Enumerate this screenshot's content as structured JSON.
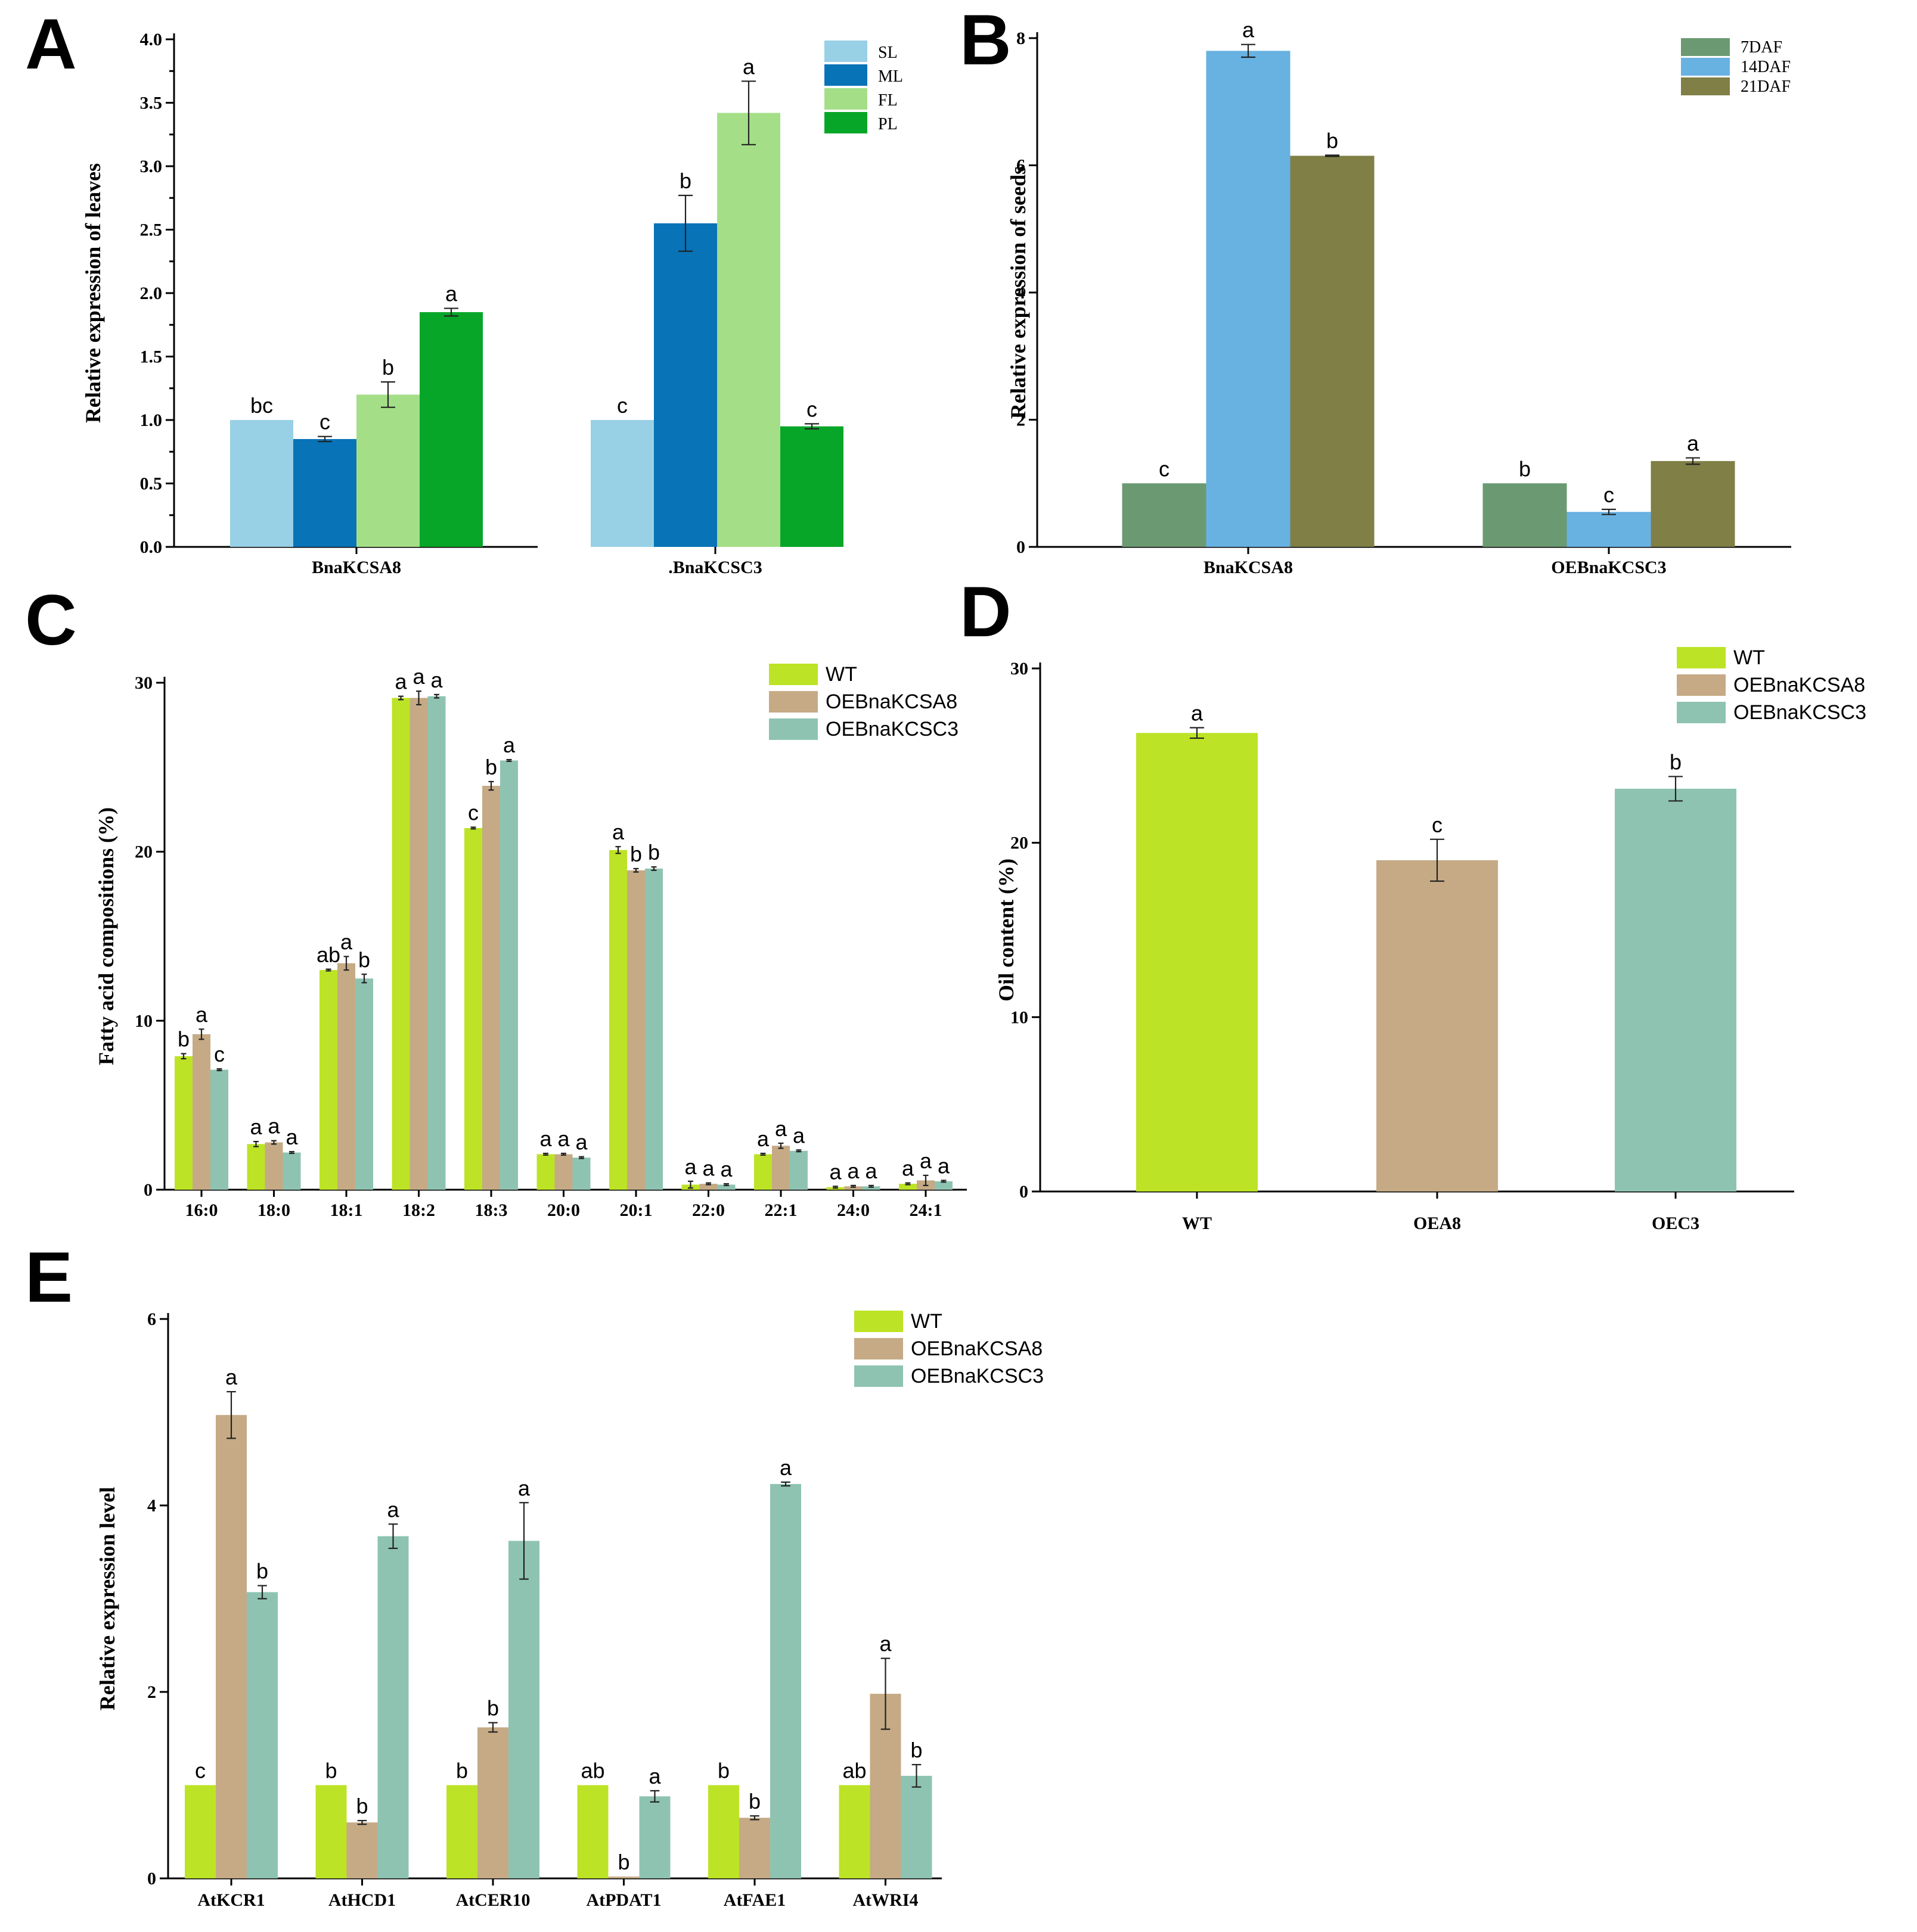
{
  "chart_data": [
    {
      "panel": "A",
      "type": "bar",
      "ylabel": "Relative expression of leaves",
      "categories": [
        "BnaKCSA8",
        "BnaKCSC3"
      ],
      "category_labels": [
        "BnaKCSA8",
        ".BnaKCSC3"
      ],
      "ylim": [
        0,
        4.0
      ],
      "yticks": [
        "0.0",
        "0.5",
        "1.0",
        "1.5",
        "2.0",
        "2.5",
        "3.0",
        "3.5",
        "4.0"
      ],
      "ytick_values": [
        0,
        0.5,
        1,
        1.5,
        2,
        2.5,
        3,
        3.5,
        4
      ],
      "legend_position": "top-right",
      "series": [
        {
          "name": "SL",
          "color": "#98d0e6",
          "values": [
            1.0,
            1.0
          ],
          "errors": [
            0,
            0
          ],
          "letters": [
            "bc",
            "c"
          ]
        },
        {
          "name": "ML",
          "color": "#0873b7",
          "values": [
            0.85,
            2.55
          ],
          "errors": [
            0.02,
            0.22
          ],
          "letters": [
            "c",
            "b"
          ]
        },
        {
          "name": "FL",
          "color": "#a4df88",
          "values": [
            1.2,
            3.42
          ],
          "errors": [
            0.1,
            0.25
          ],
          "letters": [
            "b",
            "a"
          ]
        },
        {
          "name": "PL",
          "color": "#08a628",
          "values": [
            1.85,
            0.95
          ],
          "errors": [
            0.03,
            0.02
          ],
          "letters": [
            "a",
            "c"
          ]
        }
      ]
    },
    {
      "panel": "B",
      "type": "bar",
      "ylabel": "Relative expression of seeds",
      "categories": [
        "BnaKCSA8",
        "OEBnaKCSC3"
      ],
      "category_labels": [
        "BnaKCSA8",
        "OEBnaKCSC3"
      ],
      "ylim": [
        0,
        8
      ],
      "yticks": [
        "0",
        "2",
        "4",
        "6",
        "8"
      ],
      "ytick_values": [
        0,
        2,
        4,
        6,
        8
      ],
      "legend_position": "top-right",
      "series": [
        {
          "name": "7DAF",
          "color": "#6b9a72",
          "values": [
            1.0,
            1.0
          ],
          "errors": [
            0,
            0
          ],
          "letters": [
            "c",
            "b"
          ]
        },
        {
          "name": "14DAF",
          "color": "#68b2e2",
          "values": [
            7.8,
            0.55
          ],
          "errors": [
            0.1,
            0.04
          ],
          "letters": [
            "a",
            "c"
          ]
        },
        {
          "name": "21DAF",
          "color": "#7f7f46",
          "values": [
            6.15,
            1.35
          ],
          "errors": [
            0.01,
            0.05
          ],
          "letters": [
            "b",
            "a"
          ]
        }
      ]
    },
    {
      "panel": "C",
      "type": "bar",
      "ylabel": "Fatty acid compositions (%)",
      "categories": [
        "16:0",
        "18:0",
        "18:1",
        "18:2",
        "18:3",
        "20:0",
        "20:1",
        "22:0",
        "22:1",
        "24:0",
        "24:1"
      ],
      "category_labels": [
        "16:0",
        "18:0",
        "18:1",
        "18:2",
        "18:3",
        "20:0",
        "20:1",
        "22:0",
        "22:1",
        "24:0",
        "24:1"
      ],
      "ylim": [
        0,
        30
      ],
      "yticks": [
        "0",
        "10",
        "20",
        "30"
      ],
      "ytick_values": [
        0,
        10,
        20,
        30
      ],
      "legend_position": "top-right",
      "series": [
        {
          "name": "WT",
          "color": "#bce325",
          "values": [
            7.9,
            2.7,
            13.0,
            29.1,
            21.4,
            2.1,
            20.1,
            0.3,
            2.1,
            0.15,
            0.35
          ],
          "errors": [
            0.15,
            0.15,
            0.05,
            0.1,
            0.05,
            0.05,
            0.2,
            0.2,
            0.05,
            0.05,
            0.05
          ],
          "letters": [
            "b",
            "a",
            "ab",
            "a",
            "c",
            "a",
            "a",
            "a",
            "a",
            "a",
            "a"
          ]
        },
        {
          "name": "OEBnaKCSA8",
          "color": "#c5aa85",
          "values": [
            9.2,
            2.8,
            13.4,
            29.1,
            23.9,
            2.1,
            18.9,
            0.35,
            2.6,
            0.2,
            0.55
          ],
          "errors": [
            0.3,
            0.1,
            0.4,
            0.4,
            0.25,
            0.05,
            0.1,
            0.05,
            0.15,
            0.05,
            0.3
          ],
          "letters": [
            "a",
            "a",
            "a",
            "a",
            "b",
            "a",
            "b",
            "a",
            "a",
            "a",
            "a"
          ]
        },
        {
          "name": "OEBnaKCSC3",
          "color": "#8ec3b2",
          "values": [
            7.1,
            2.2,
            12.5,
            29.2,
            25.4,
            1.9,
            19.0,
            0.3,
            2.3,
            0.2,
            0.5
          ],
          "errors": [
            0.05,
            0.05,
            0.25,
            0.1,
            0.05,
            0.05,
            0.1,
            0.05,
            0.05,
            0.05,
            0.05
          ],
          "letters": [
            "c",
            "a",
            "b",
            "a",
            "a",
            "a",
            "b",
            "a",
            "a",
            "a",
            "a"
          ]
        }
      ]
    },
    {
      "panel": "D",
      "type": "bar",
      "ylabel": "Oil content (%)",
      "categories": [
        "WT",
        "OEA8",
        "OEC3"
      ],
      "category_labels": [
        "WT",
        "OEA8",
        "OEC3"
      ],
      "ylim": [
        0,
        30
      ],
      "yticks": [
        "0",
        "10",
        "20",
        "30"
      ],
      "ytick_values": [
        0,
        10,
        20,
        30
      ],
      "legend_position": "top-right",
      "legend": [
        {
          "name": "WT",
          "color": "#bce325"
        },
        {
          "name": "OEBnaKCSA8",
          "color": "#c5aa85"
        },
        {
          "name": "OEBnaKCSC3",
          "color": "#8ec3b2"
        }
      ],
      "series": [
        {
          "name": "Oil content",
          "colors": [
            "#bce325",
            "#c5aa85",
            "#8ec3b2"
          ],
          "values": [
            26.3,
            19.0,
            23.1
          ],
          "errors": [
            0.3,
            1.2,
            0.7
          ],
          "letters": [
            "a",
            "c",
            "b"
          ]
        }
      ]
    },
    {
      "panel": "E",
      "type": "bar",
      "ylabel": "Relative expression level",
      "categories": [
        "AtKCR1",
        "AtHCD1",
        "AtCER10",
        "AtPDAT1",
        "AtFAE1",
        "AtWRI4"
      ],
      "category_labels": [
        "AtKCR1",
        "AtHCD1",
        "AtCER10",
        "AtPDAT1",
        "AtFAE1",
        "AtWRI4"
      ],
      "ylim": [
        0,
        6
      ],
      "yticks": [
        "0",
        "2",
        "4",
        "6"
      ],
      "ytick_values": [
        0,
        2,
        4,
        6
      ],
      "legend_position": "top-right",
      "series": [
        {
          "name": "WT",
          "color": "#bce325",
          "values": [
            1.0,
            1.0,
            1.0,
            1.0,
            1.0,
            1.0
          ],
          "errors": [
            0,
            0,
            0,
            0,
            0,
            0
          ],
          "letters": [
            "c",
            "b",
            "b",
            "ab",
            "b",
            "ab"
          ]
        },
        {
          "name": "OEBnaKCSA8",
          "color": "#c5aa85",
          "values": [
            4.97,
            0.6,
            1.62,
            0.02,
            0.65,
            1.98
          ],
          "errors": [
            0.25,
            0.02,
            0.05,
            0,
            0.02,
            0.38
          ],
          "letters": [
            "a",
            "b",
            "b",
            "b",
            "b",
            "a"
          ]
        },
        {
          "name": "OEBnaKCSC3",
          "color": "#8ec3b2",
          "values": [
            3.07,
            3.67,
            3.62,
            0.88,
            4.23,
            1.1
          ],
          "errors": [
            0.07,
            0.13,
            0.41,
            0.06,
            0.02,
            0.12
          ],
          "letters": [
            "b",
            "a",
            "a",
            "a",
            "a",
            "b"
          ]
        }
      ]
    }
  ]
}
